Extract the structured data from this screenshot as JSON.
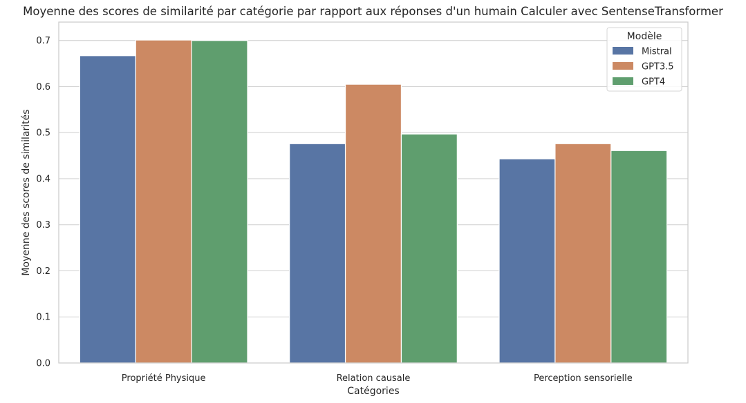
{
  "chart_data": {
    "type": "bar",
    "title": "Moyenne des scores de similarité par catégorie par rapport aux réponses d'un humain Calculer avec SentenseTransformer",
    "xlabel": "Catégories",
    "ylabel": "Moyenne des scores de similarités",
    "categories": [
      "Propriété Physique",
      "Relation causale",
      "Perception sensorielle"
    ],
    "ylim": [
      0,
      0.74
    ],
    "yticks": [
      "0.0",
      "0.1",
      "0.2",
      "0.3",
      "0.4",
      "0.5",
      "0.6",
      "0.7"
    ],
    "grid": true,
    "legend": {
      "title": "Modèle",
      "placement": "top-right"
    },
    "series": [
      {
        "name": "Mistral",
        "color": "#5875a4",
        "values": [
          0.667,
          0.476,
          0.443
        ]
      },
      {
        "name": "GPT3.5",
        "color": "#cc8963",
        "values": [
          0.701,
          0.605,
          0.476
        ]
      },
      {
        "name": "GPT4",
        "color": "#5f9e6e",
        "values": [
          0.7,
          0.497,
          0.461
        ]
      }
    ]
  }
}
